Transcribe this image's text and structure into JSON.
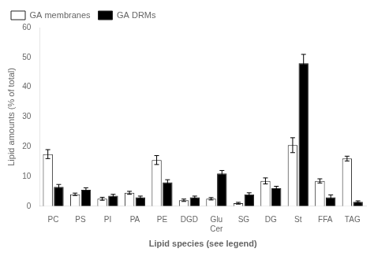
{
  "chart_data": {
    "type": "bar",
    "categories": [
      "PC",
      "PS",
      "PI",
      "PA",
      "PE",
      "DGD",
      "Glu",
      "SG",
      "DG",
      "St",
      "FFA",
      "TAG"
    ],
    "series": [
      {
        "name": "GA membranes",
        "color": "#ffffff",
        "values": [
          17.5,
          4.0,
          2.5,
          4.5,
          15.5,
          2.0,
          2.5,
          1.0,
          8.5,
          20.5,
          8.5,
          16.0
        ],
        "errors": [
          1.5,
          0.4,
          0.5,
          0.5,
          1.5,
          0.4,
          0.4,
          0.3,
          1.0,
          2.5,
          0.7,
          0.8
        ]
      },
      {
        "name": "GA DRMs",
        "color": "#000000",
        "values": [
          6.5,
          5.5,
          3.5,
          3.0,
          8.0,
          3.0,
          11.0,
          4.0,
          6.0,
          48.0,
          3.0,
          1.5
        ],
        "errors": [
          0.8,
          0.7,
          0.5,
          0.4,
          0.9,
          0.4,
          1.0,
          0.5,
          0.7,
          3.0,
          0.8,
          0.3
        ]
      }
    ],
    "xlabel": "Lipid species (see legend)",
    "ylabel": "Lipid amounts (% of total)",
    "annotations": [
      {
        "text": "Cer",
        "x": "Glu"
      }
    ],
    "ylim": [
      0,
      60
    ],
    "yticks": [
      0,
      10,
      20,
      30,
      40,
      50,
      60
    ],
    "grid": false,
    "legend": "upper left"
  }
}
